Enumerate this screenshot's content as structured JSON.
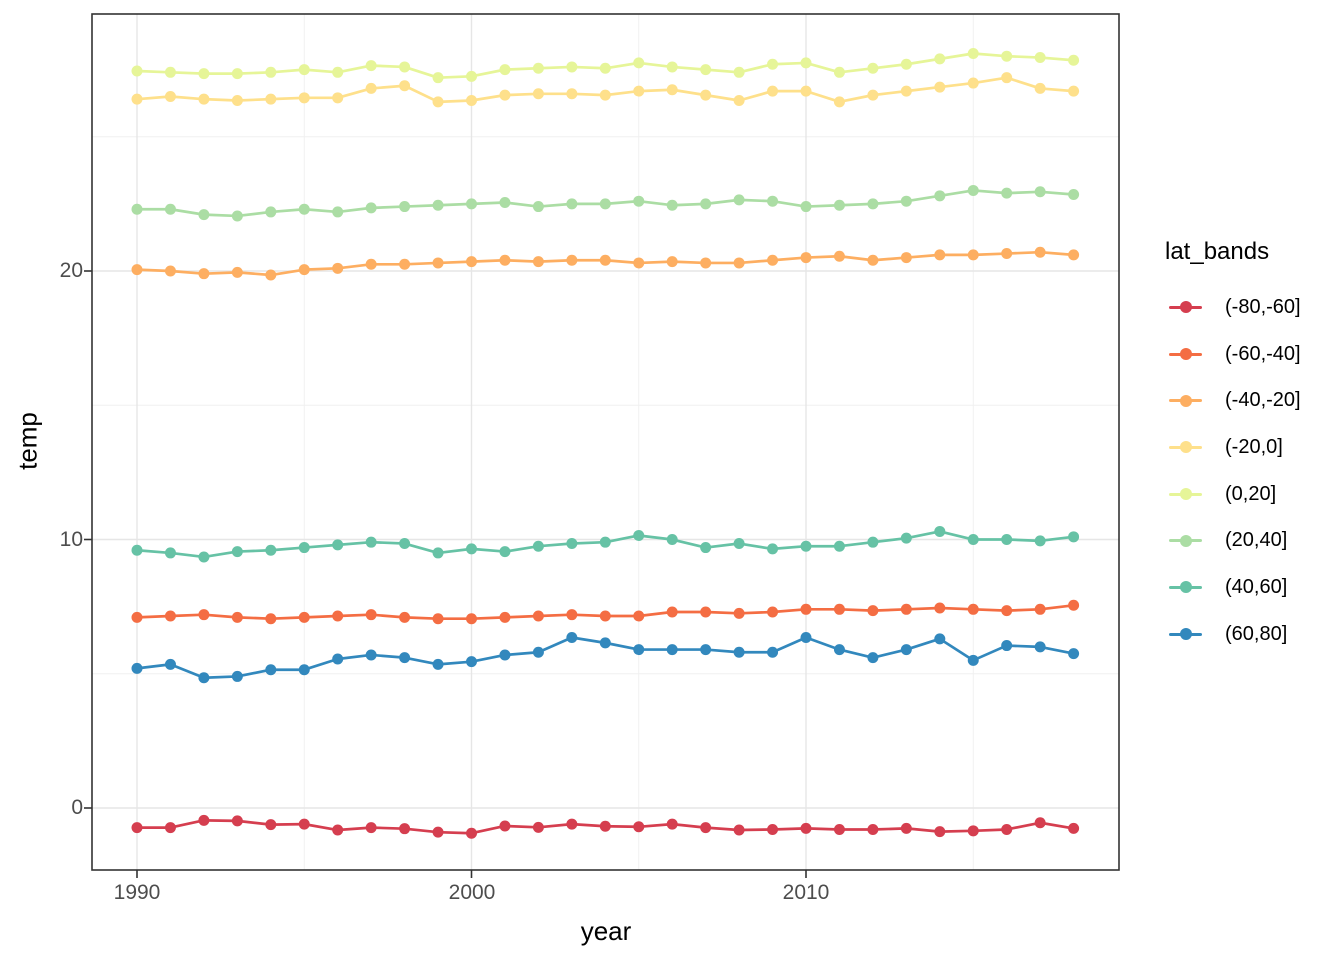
{
  "chart_data": {
    "type": "line",
    "title": "",
    "xlabel": "year",
    "ylabel": "temp",
    "legend_title": "lat_bands",
    "legend_position": "right",
    "grid": true,
    "panel_border_color": "#333333",
    "grid_major_color": "#e6e6e6",
    "grid_minor_color": "#f0f0f0",
    "tick_label_color": "#4d4d4d",
    "x_ticks": [
      1990,
      2000,
      2010
    ],
    "x_minor_ticks": [
      1995,
      2005,
      2015
    ],
    "y_ticks": [
      0,
      10,
      20
    ],
    "y_minor_ticks": [
      5,
      15,
      25
    ],
    "xlim": [
      1988.6,
      2019.4
    ],
    "ylim": [
      -2.3,
      29.6
    ],
    "x": [
      1990,
      1991,
      1992,
      1993,
      1994,
      1995,
      1996,
      1997,
      1998,
      1999,
      2000,
      2001,
      2002,
      2003,
      2004,
      2005,
      2006,
      2007,
      2008,
      2009,
      2010,
      2011,
      2012,
      2013,
      2014,
      2015,
      2016,
      2017,
      2018
    ],
    "series": [
      {
        "name": "(-80,-60]",
        "color": "#d53e4f",
        "values": [
          -0.73,
          -0.73,
          -0.46,
          -0.48,
          -0.62,
          -0.6,
          -0.82,
          -0.73,
          -0.77,
          -0.9,
          -0.94,
          -0.67,
          -0.72,
          -0.6,
          -0.68,
          -0.7,
          -0.6,
          -0.73,
          -0.82,
          -0.8,
          -0.76,
          -0.8,
          -0.8,
          -0.76,
          -0.88,
          -0.85,
          -0.8,
          -0.55,
          -0.76
        ]
      },
      {
        "name": "(-60,-40]",
        "color": "#f46d43",
        "values": [
          7.1,
          7.15,
          7.2,
          7.1,
          7.05,
          7.1,
          7.15,
          7.2,
          7.1,
          7.05,
          7.05,
          7.1,
          7.15,
          7.2,
          7.15,
          7.15,
          7.3,
          7.3,
          7.25,
          7.3,
          7.4,
          7.4,
          7.35,
          7.4,
          7.45,
          7.4,
          7.35,
          7.4,
          7.55
        ]
      },
      {
        "name": "(-40,-20]",
        "color": "#fdae61",
        "values": [
          20.05,
          20.0,
          19.9,
          19.95,
          19.85,
          20.05,
          20.1,
          20.25,
          20.25,
          20.3,
          20.35,
          20.4,
          20.35,
          20.4,
          20.4,
          20.3,
          20.35,
          20.3,
          20.3,
          20.4,
          20.5,
          20.55,
          20.4,
          20.5,
          20.6,
          20.6,
          20.65,
          20.7,
          20.6
        ]
      },
      {
        "name": "(-20,0]",
        "color": "#fee08b",
        "values": [
          26.4,
          26.5,
          26.4,
          26.35,
          26.4,
          26.45,
          26.45,
          26.8,
          26.9,
          26.3,
          26.35,
          26.55,
          26.6,
          26.6,
          26.55,
          26.7,
          26.75,
          26.55,
          26.35,
          26.7,
          26.7,
          26.3,
          26.55,
          26.7,
          26.85,
          27.0,
          27.2,
          26.8,
          26.7
        ]
      },
      {
        "name": "(0,20]",
        "color": "#e6f598",
        "values": [
          27.45,
          27.4,
          27.35,
          27.35,
          27.4,
          27.5,
          27.4,
          27.65,
          27.6,
          27.2,
          27.25,
          27.5,
          27.55,
          27.6,
          27.55,
          27.75,
          27.6,
          27.5,
          27.4,
          27.7,
          27.75,
          27.4,
          27.55,
          27.7,
          27.9,
          28.1,
          28.0,
          27.95,
          27.85
        ]
      },
      {
        "name": "(20,40]",
        "color": "#abdda4",
        "values": [
          22.3,
          22.3,
          22.1,
          22.05,
          22.2,
          22.3,
          22.2,
          22.35,
          22.4,
          22.45,
          22.5,
          22.55,
          22.4,
          22.5,
          22.5,
          22.6,
          22.45,
          22.5,
          22.65,
          22.6,
          22.4,
          22.45,
          22.5,
          22.6,
          22.8,
          23.0,
          22.9,
          22.95,
          22.85
        ]
      },
      {
        "name": "(40,60]",
        "color": "#66c2a5",
        "values": [
          9.6,
          9.5,
          9.35,
          9.55,
          9.6,
          9.7,
          9.8,
          9.9,
          9.85,
          9.5,
          9.65,
          9.55,
          9.75,
          9.85,
          9.9,
          10.15,
          10.0,
          9.7,
          9.85,
          9.65,
          9.75,
          9.75,
          9.9,
          10.05,
          10.3,
          10.0,
          10.0,
          9.95,
          10.1
        ]
      },
      {
        "name": "(60,80]",
        "color": "#3288bd",
        "values": [
          5.2,
          5.35,
          4.85,
          4.9,
          5.15,
          5.15,
          5.55,
          5.7,
          5.6,
          5.35,
          5.45,
          5.7,
          5.8,
          6.35,
          6.15,
          5.9,
          5.9,
          5.9,
          5.8,
          5.8,
          6.35,
          5.9,
          5.6,
          5.9,
          6.3,
          5.5,
          6.05,
          6.0,
          5.75
        ]
      }
    ]
  }
}
